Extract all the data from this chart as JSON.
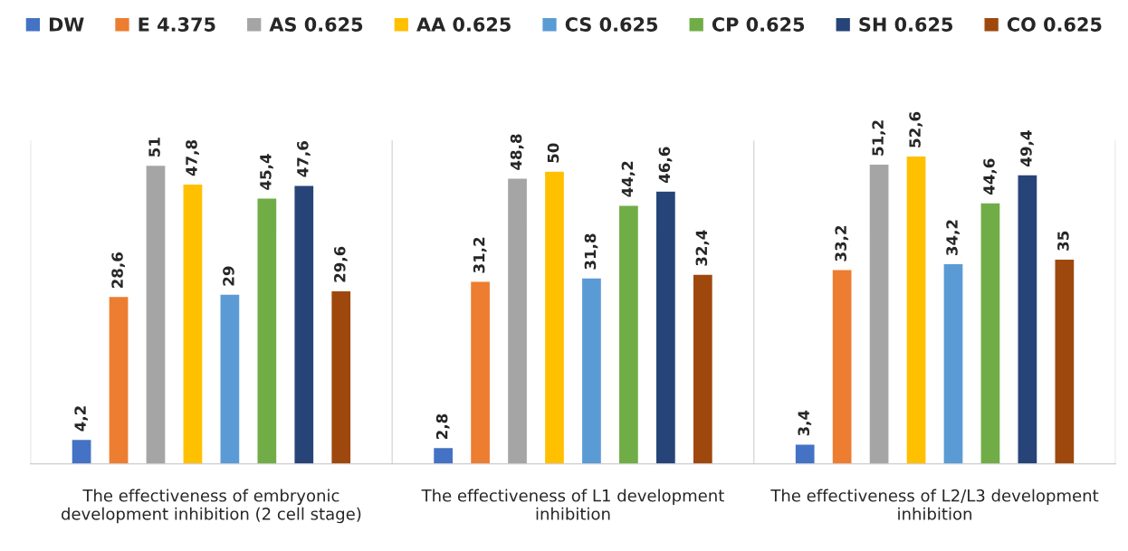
{
  "chart_data": {
    "type": "bar",
    "categories": [
      "The effectiveness of embryonic development inhibition (2 cell stage)",
      "The effectiveness of L1 development inhibition",
      "The effectiveness of L2/L3 development inhibition"
    ],
    "series": [
      {
        "name": "DW",
        "color": "#4472c4",
        "values": [
          4.2,
          2.8,
          3.4
        ],
        "value_labels": [
          "4,2",
          "2,8",
          "3,4"
        ]
      },
      {
        "name": "E 4.375",
        "color": "#ed7d31",
        "values": [
          28.6,
          31.2,
          33.2
        ],
        "value_labels": [
          "28,6",
          "31,2",
          "33,2"
        ]
      },
      {
        "name": "AS 0.625",
        "color": "#a5a5a5",
        "values": [
          51,
          48.8,
          51.2
        ],
        "value_labels": [
          "51",
          "48,8",
          "51,2"
        ]
      },
      {
        "name": "AA 0.625",
        "color": "#ffc000",
        "values": [
          47.8,
          50,
          52.6
        ],
        "value_labels": [
          "47,8",
          "50",
          "52,6"
        ]
      },
      {
        "name": "CS 0.625",
        "color": "#5b9bd5",
        "values": [
          29,
          31.8,
          34.2
        ],
        "value_labels": [
          "29",
          "31,8",
          "34,2"
        ]
      },
      {
        "name": "CP 0.625",
        "color": "#70ad47",
        "values": [
          45.4,
          44.2,
          44.6
        ],
        "value_labels": [
          "45,4",
          "44,2",
          "44,6"
        ]
      },
      {
        "name": "SH 0.625",
        "color": "#264478",
        "values": [
          47.6,
          46.6,
          49.4
        ],
        "value_labels": [
          "47,6",
          "46,6",
          "49,4"
        ]
      },
      {
        "name": "CO 0.625",
        "color": "#9e480e",
        "values": [
          29.6,
          32.4,
          35
        ],
        "value_labels": [
          "29,6",
          "32,4",
          "35"
        ]
      }
    ],
    "legend": "top",
    "grid": "x"
  }
}
